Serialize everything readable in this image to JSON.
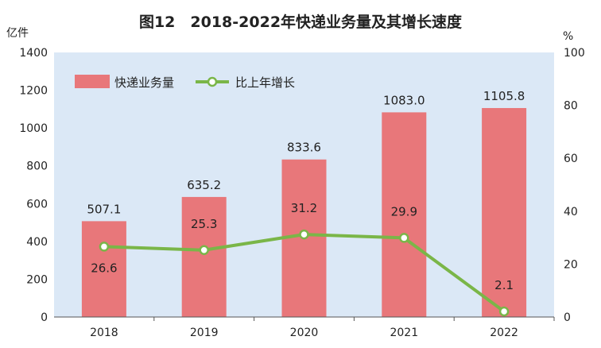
{
  "chart_data": {
    "type": "bar",
    "title": "图12　2018-2022年快递业务量及其增长速度",
    "categories": [
      "2018",
      "2019",
      "2020",
      "2021",
      "2022"
    ],
    "series": [
      {
        "name": "快递业务量",
        "type": "bar",
        "axis": "left",
        "color": "#e8777a",
        "values": [
          507.1,
          635.2,
          833.6,
          1083.0,
          1105.8
        ],
        "labels": [
          "507.1",
          "635.2",
          "833.6",
          "1083.0",
          "1105.8"
        ]
      },
      {
        "name": "比上年增长",
        "type": "line",
        "axis": "right",
        "color": "#7ab648",
        "values": [
          26.6,
          25.3,
          31.2,
          29.9,
          2.1
        ],
        "labels": [
          "26.6",
          "25.3",
          "31.2",
          "29.9",
          "2.1"
        ]
      }
    ],
    "y_left": {
      "unit": "亿件",
      "range": [
        0,
        1400
      ],
      "ticks": [
        "0",
        "200",
        "400",
        "600",
        "800",
        "1000",
        "1200",
        "1400"
      ]
    },
    "y_right": {
      "unit": "%",
      "range": [
        0,
        100
      ],
      "ticks": [
        "0",
        "20",
        "40",
        "60",
        "80",
        "100"
      ]
    },
    "plot_background": "#dbe8f6",
    "grid": false,
    "legend_position": "top-left"
  }
}
